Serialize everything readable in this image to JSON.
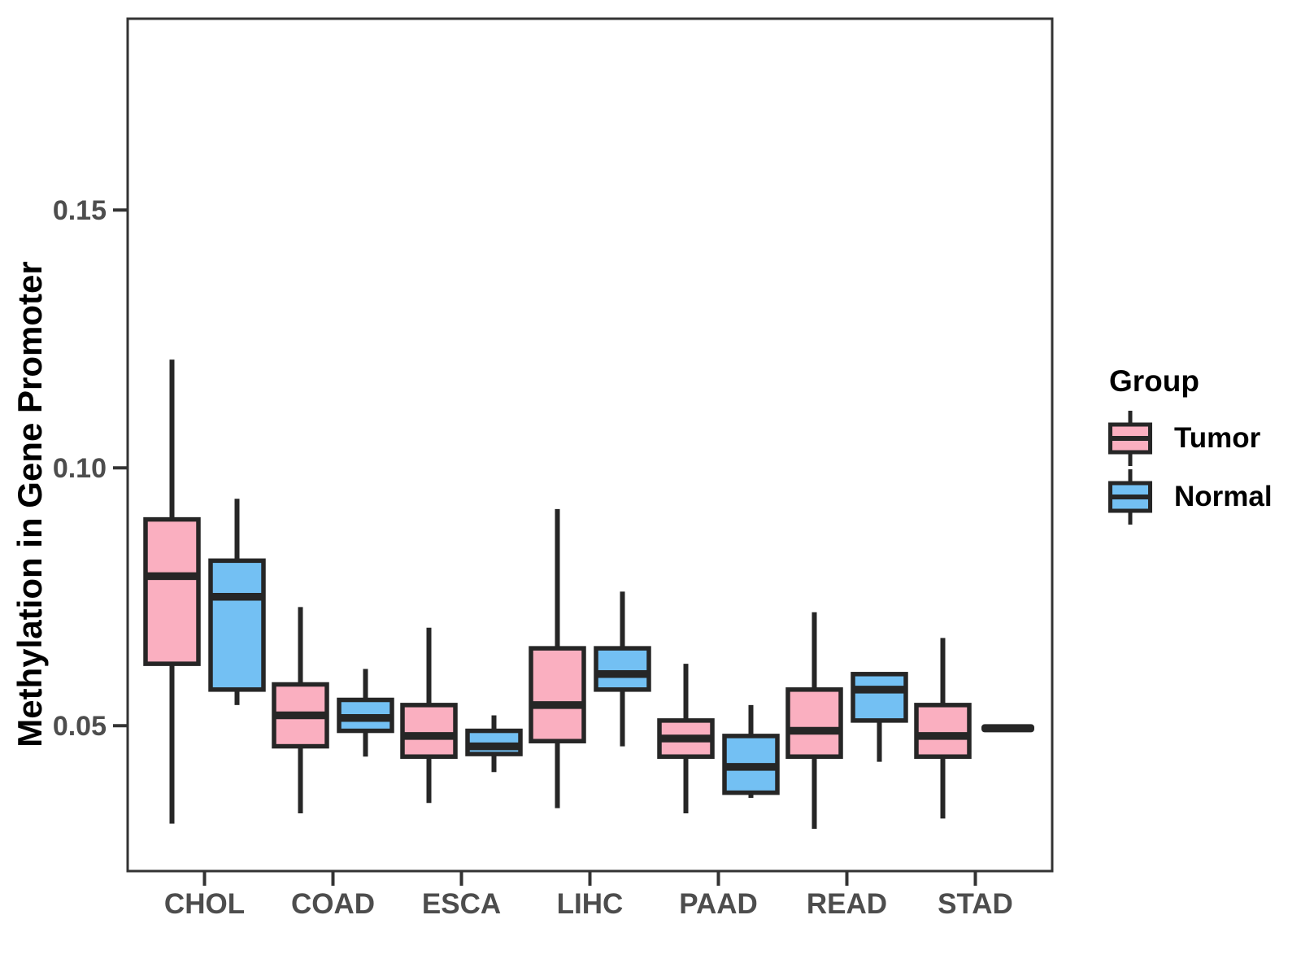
{
  "figure": {
    "background": "#ffffff"
  },
  "colors": {
    "tumor": "#FAAFC0",
    "normal": "#73C0F3",
    "line": "#262626",
    "panel_border": "#333333",
    "tick_text": "#4D4D4D",
    "axis_title_text": "#000000"
  },
  "axis": {
    "y_title": "Methylation in Gene Promoter"
  },
  "legend": {
    "title": "Group",
    "entries": [
      {
        "label": "Tumor",
        "color": "#FAAFC0"
      },
      {
        "label": "Normal",
        "color": "#73C0F3"
      }
    ]
  },
  "chart_data": {
    "type": "boxplot",
    "title": "",
    "xlabel": "",
    "ylabel": "Methylation in Gene Promoter",
    "ylim": [
      0.0218,
      0.1871
    ],
    "yticks": [
      0.05,
      0.1,
      0.15
    ],
    "ytick_labels": [
      "0.05",
      "0.10",
      "0.15"
    ],
    "grid": false,
    "legend_position": "right",
    "categories": [
      "CHOL",
      "COAD",
      "ESCA",
      "LIHC",
      "PAAD",
      "READ",
      "STAD"
    ],
    "groups": [
      "Tumor",
      "Normal"
    ],
    "series": [
      {
        "name": "Tumor",
        "color": "#FAAFC0",
        "boxes": [
          {
            "category": "CHOL",
            "whisker_low": 0.031,
            "q1": 0.062,
            "median": 0.079,
            "q3": 0.09,
            "whisker_high": 0.121
          },
          {
            "category": "COAD",
            "whisker_low": 0.033,
            "q1": 0.046,
            "median": 0.052,
            "q3": 0.058,
            "whisker_high": 0.073
          },
          {
            "category": "ESCA",
            "whisker_low": 0.035,
            "q1": 0.044,
            "median": 0.048,
            "q3": 0.054,
            "whisker_high": 0.069
          },
          {
            "category": "LIHC",
            "whisker_low": 0.034,
            "q1": 0.047,
            "median": 0.054,
            "q3": 0.065,
            "whisker_high": 0.092
          },
          {
            "category": "PAAD",
            "whisker_low": 0.033,
            "q1": 0.044,
            "median": 0.0475,
            "q3": 0.051,
            "whisker_high": 0.062
          },
          {
            "category": "READ",
            "whisker_low": 0.03,
            "q1": 0.044,
            "median": 0.049,
            "q3": 0.057,
            "whisker_high": 0.072
          },
          {
            "category": "STAD",
            "whisker_low": 0.032,
            "q1": 0.044,
            "median": 0.048,
            "q3": 0.054,
            "whisker_high": 0.067
          }
        ]
      },
      {
        "name": "Normal",
        "color": "#73C0F3",
        "boxes": [
          {
            "category": "CHOL",
            "whisker_low": 0.054,
            "q1": 0.057,
            "median": 0.075,
            "q3": 0.082,
            "whisker_high": 0.094
          },
          {
            "category": "COAD",
            "whisker_low": 0.044,
            "q1": 0.049,
            "median": 0.0515,
            "q3": 0.055,
            "whisker_high": 0.061
          },
          {
            "category": "ESCA",
            "whisker_low": 0.041,
            "q1": 0.0445,
            "median": 0.046,
            "q3": 0.049,
            "whisker_high": 0.052
          },
          {
            "category": "LIHC",
            "whisker_low": 0.046,
            "q1": 0.057,
            "median": 0.06,
            "q3": 0.065,
            "whisker_high": 0.076
          },
          {
            "category": "PAAD",
            "whisker_low": 0.036,
            "q1": 0.037,
            "median": 0.042,
            "q3": 0.048,
            "whisker_high": 0.054
          },
          {
            "category": "READ",
            "whisker_low": 0.043,
            "q1": 0.051,
            "median": 0.057,
            "q3": 0.06,
            "whisker_high": 0.06
          },
          {
            "category": "STAD",
            "whisker_low": 0.0495,
            "q1": 0.0495,
            "median": 0.0495,
            "q3": 0.0495,
            "whisker_high": 0.0495,
            "flat": true
          }
        ]
      }
    ]
  }
}
